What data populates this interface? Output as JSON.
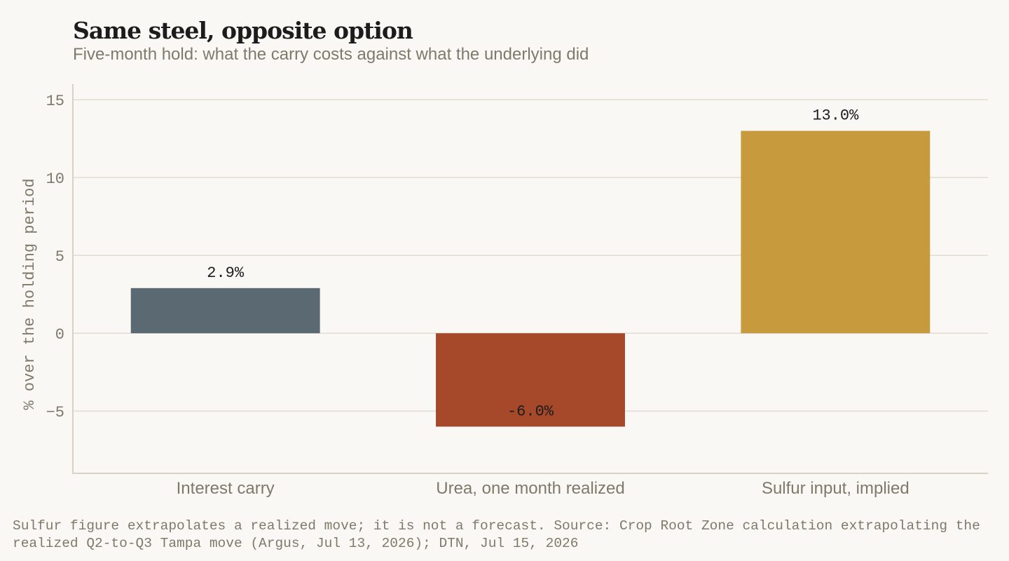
{
  "title": "Same steel, opposite option",
  "subtitle": "Five-month hold: what the carry costs against what the underlying did",
  "footnote": {
    "caveat": "Sulfur figure extrapolates a realized move; it is not a forecast.",
    "source": "Source: Crop Root Zone calculation extrapolating the realized Q2-to-Q3 Tampa move (Argus, Jul 13, 2026); DTN, Jul 15, 2026"
  },
  "chart_data": {
    "type": "bar",
    "categories": [
      "Interest carry",
      "Urea, one month realized",
      "Sulfur input, implied"
    ],
    "values": [
      2.9,
      -6.0,
      13.0
    ],
    "value_labels": [
      "2.9%",
      "-6.0%",
      "13.0%"
    ],
    "colors": [
      "#5b6a72",
      "#a6482a",
      "#c79a3d"
    ],
    "ylabel": "% over the holding period",
    "xlabel": "",
    "ylim": [
      -9,
      16
    ],
    "yticks": [
      -5,
      0,
      5,
      10,
      15
    ],
    "ytick_labels": [
      "−5",
      "0",
      "5",
      "10",
      "15"
    ],
    "grid": true
  }
}
